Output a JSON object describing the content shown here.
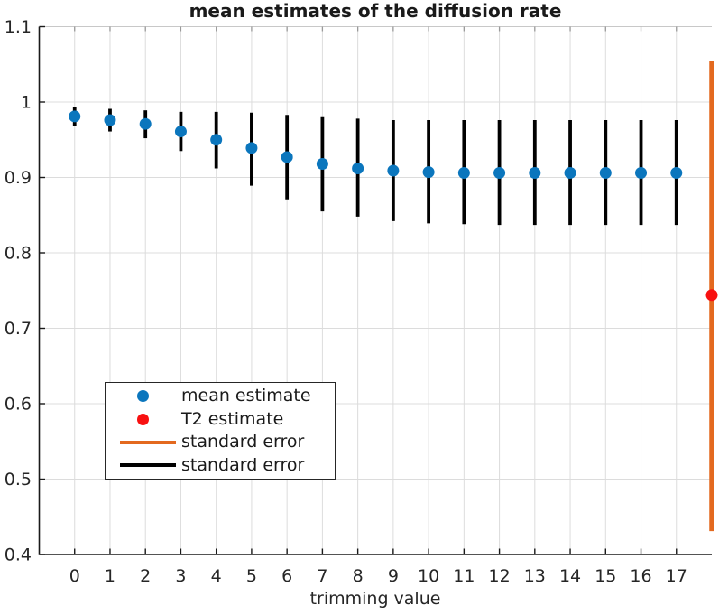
{
  "chart_data": {
    "type": "scatter",
    "title": "mean estimates of the diffusion rate",
    "xlabel": "trimming value",
    "ylabel": "",
    "xlim": [
      -1,
      18
    ],
    "ylim": [
      0.4,
      1.1
    ],
    "grid": true,
    "x_ticks": [
      0,
      1,
      2,
      3,
      4,
      5,
      6,
      7,
      8,
      9,
      10,
      11,
      12,
      13,
      14,
      15,
      16,
      17
    ],
    "x_tick_labels": [
      "0",
      "1",
      "2",
      "3",
      "4",
      "5",
      "6",
      "7",
      "8",
      "9",
      "10",
      "11",
      "12",
      "13",
      "14",
      "15",
      "16",
      "17"
    ],
    "y_ticks": [
      0.4,
      0.5,
      0.6,
      0.7,
      0.8,
      0.9,
      1.0,
      1.1
    ],
    "y_tick_labels": [
      "0.4",
      "0.5",
      "0.6",
      "0.7",
      "0.8",
      "0.9",
      "1",
      "1.1"
    ],
    "series": [
      {
        "name": "mean estimate",
        "marker": "dot",
        "marker_color": "#0b76bd",
        "errorbar_color": "#000000",
        "x": [
          0,
          1,
          2,
          3,
          4,
          5,
          6,
          7,
          8,
          9,
          10,
          11,
          12,
          13,
          14,
          15,
          16,
          17
        ],
        "y": [
          0.981,
          0.976,
          0.971,
          0.961,
          0.95,
          0.939,
          0.927,
          0.918,
          0.912,
          0.909,
          0.907,
          0.906,
          0.906,
          0.906,
          0.906,
          0.906,
          0.906,
          0.906
        ],
        "err_low": [
          0.968,
          0.961,
          0.952,
          0.935,
          0.912,
          0.889,
          0.871,
          0.855,
          0.848,
          0.842,
          0.839,
          0.838,
          0.837,
          0.837,
          0.837,
          0.837,
          0.837,
          0.837
        ],
        "err_high": [
          0.994,
          0.991,
          0.989,
          0.987,
          0.987,
          0.986,
          0.983,
          0.98,
          0.978,
          0.976,
          0.976,
          0.976,
          0.976,
          0.976,
          0.976,
          0.976,
          0.976,
          0.976
        ]
      },
      {
        "name": "T2 estimate",
        "marker": "dot",
        "marker_color": "#f81111",
        "errorbar_color": "#e3691f",
        "x": [
          18
        ],
        "y": [
          0.744
        ],
        "err_low": [
          0.431
        ],
        "err_high": [
          1.055
        ]
      }
    ],
    "legend": {
      "position": "lower-left",
      "entries": [
        {
          "label": "mean estimate",
          "marker": "dot",
          "color": "#0b76bd"
        },
        {
          "label": "T2 estimate",
          "marker": "dot",
          "color": "#f81111"
        },
        {
          "label": "standard error",
          "marker": "line",
          "color": "#e3691f"
        },
        {
          "label": "standard error",
          "marker": "line",
          "color": "#000000"
        }
      ]
    },
    "colors": {
      "grid": "#dcdcdc",
      "spine_dark": "#1a1a1a",
      "spine_light": "#c8c8c8",
      "top_tick": "#9a9a9a",
      "background": "#ffffff"
    }
  }
}
